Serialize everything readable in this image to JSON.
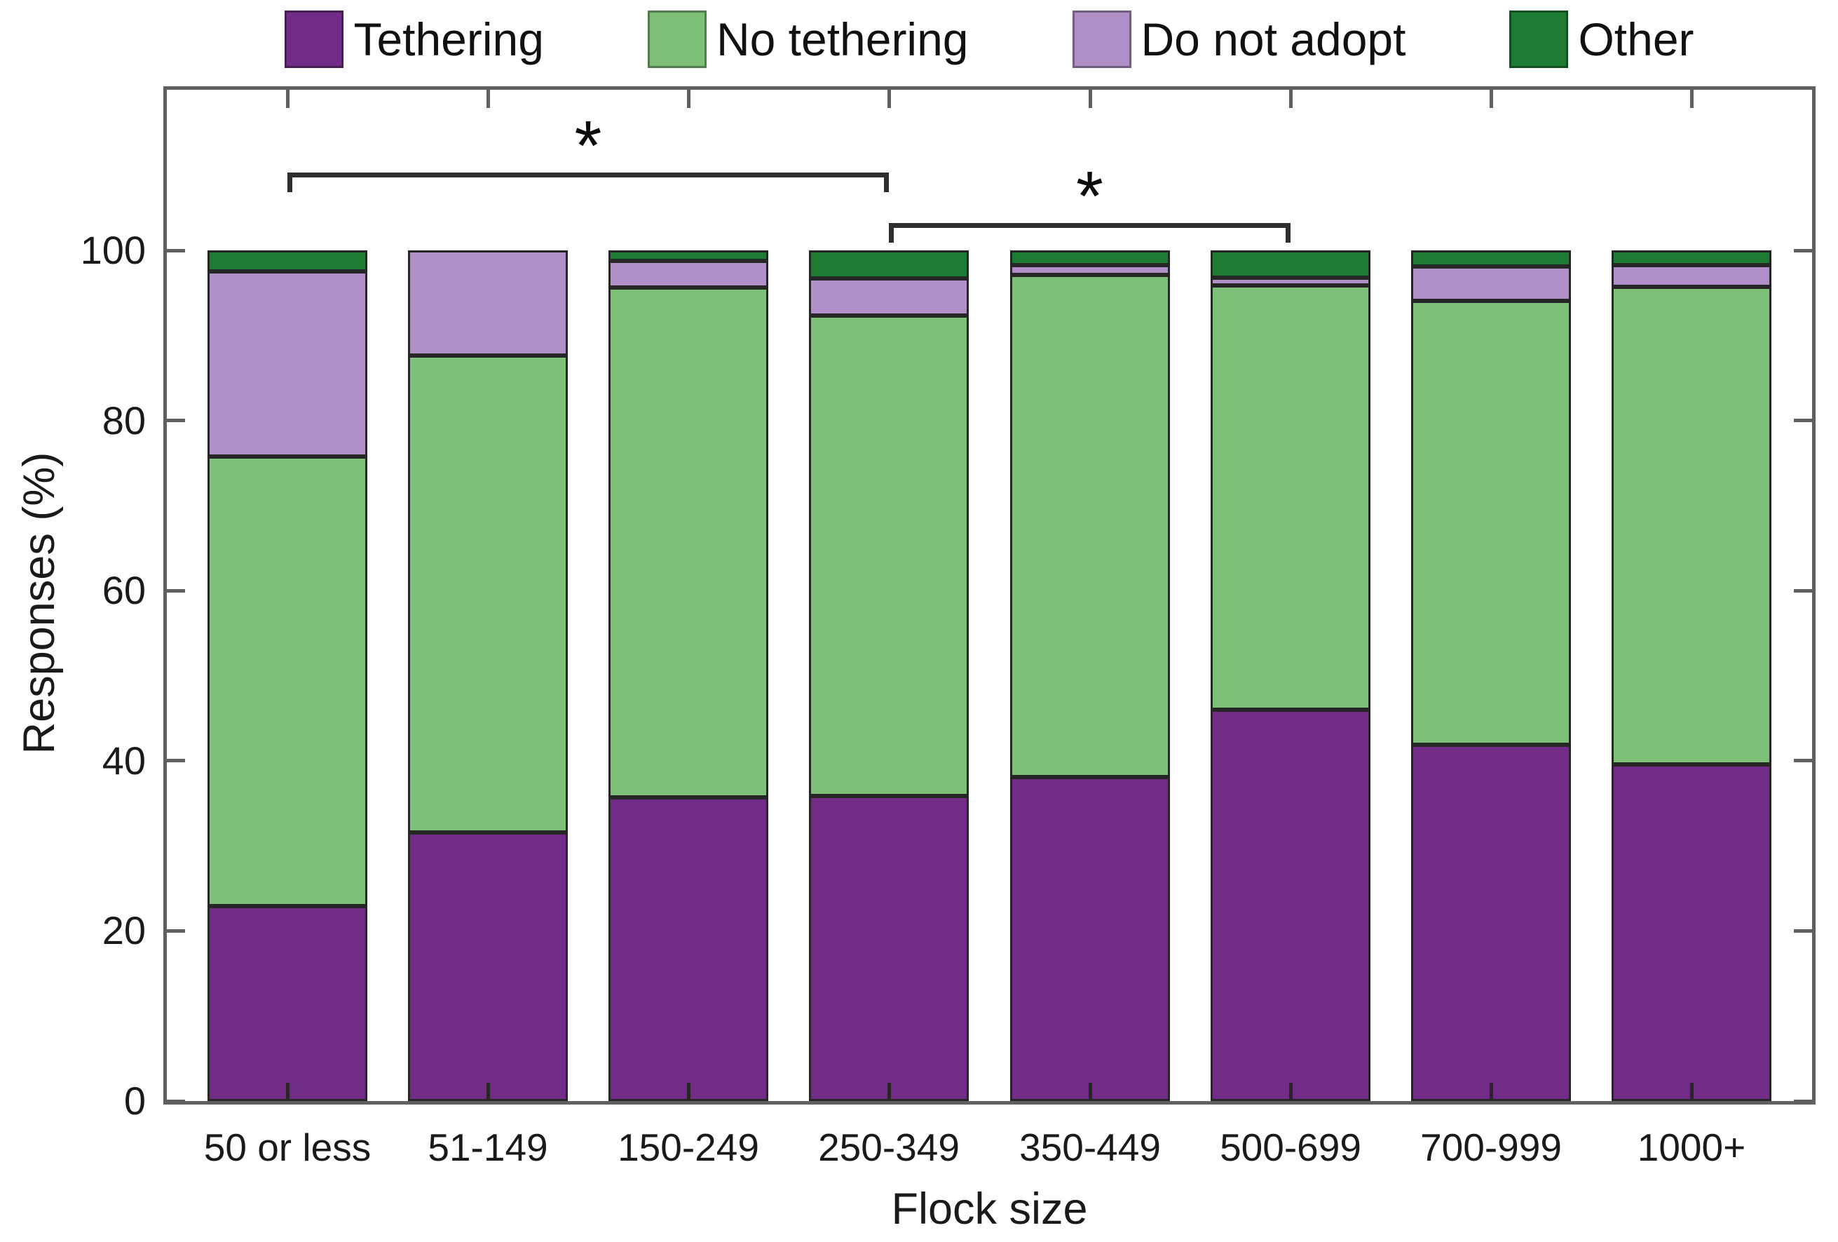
{
  "chart_data": {
    "type": "bar",
    "stacked": true,
    "orientation": "vertical",
    "title": "",
    "xlabel": "Flock size",
    "ylabel": "Responses (%)",
    "ylim": [
      0,
      100
    ],
    "yticks": [
      0,
      20,
      40,
      60,
      80,
      100
    ],
    "grid": false,
    "legend_position": "top",
    "frame": "full-box-with-inward-ticks",
    "categories": [
      "50 or less",
      "51-149",
      "150-249",
      "250-349",
      "350-449",
      "500-699",
      "700-999",
      "1000+"
    ],
    "series": [
      {
        "name": "Tethering",
        "color": "#722b86",
        "values": [
          22.9,
          31.6,
          35.7,
          35.9,
          38.1,
          46.0,
          41.9,
          39.6
        ]
      },
      {
        "name": "No tethering",
        "color": "#7fc078",
        "values": [
          52.9,
          56.0,
          59.9,
          56.4,
          59.0,
          49.9,
          52.2,
          56.1
        ]
      },
      {
        "name": "Do not adopt",
        "color": "#b190ca",
        "values": [
          21.7,
          12.4,
          3.2,
          4.4,
          1.2,
          0.9,
          4.0,
          2.6
        ]
      },
      {
        "name": "Other",
        "color": "#1e7b33",
        "values": [
          2.5,
          0.0,
          1.2,
          3.3,
          1.7,
          3.2,
          1.9,
          1.7
        ]
      }
    ],
    "annotations": [
      {
        "type": "significance-bracket",
        "from": "50 or less",
        "to": "250-349",
        "label": "*",
        "row": 1
      },
      {
        "type": "significance-bracket",
        "from": "250-349",
        "to": "500-699",
        "label": "*",
        "row": 2
      }
    ],
    "colors": {
      "segment_border": "#262626",
      "axis": "#606060",
      "text": "#1a1a1a",
      "annotation": "#2e2e2e",
      "background": "#ffffff"
    }
  }
}
